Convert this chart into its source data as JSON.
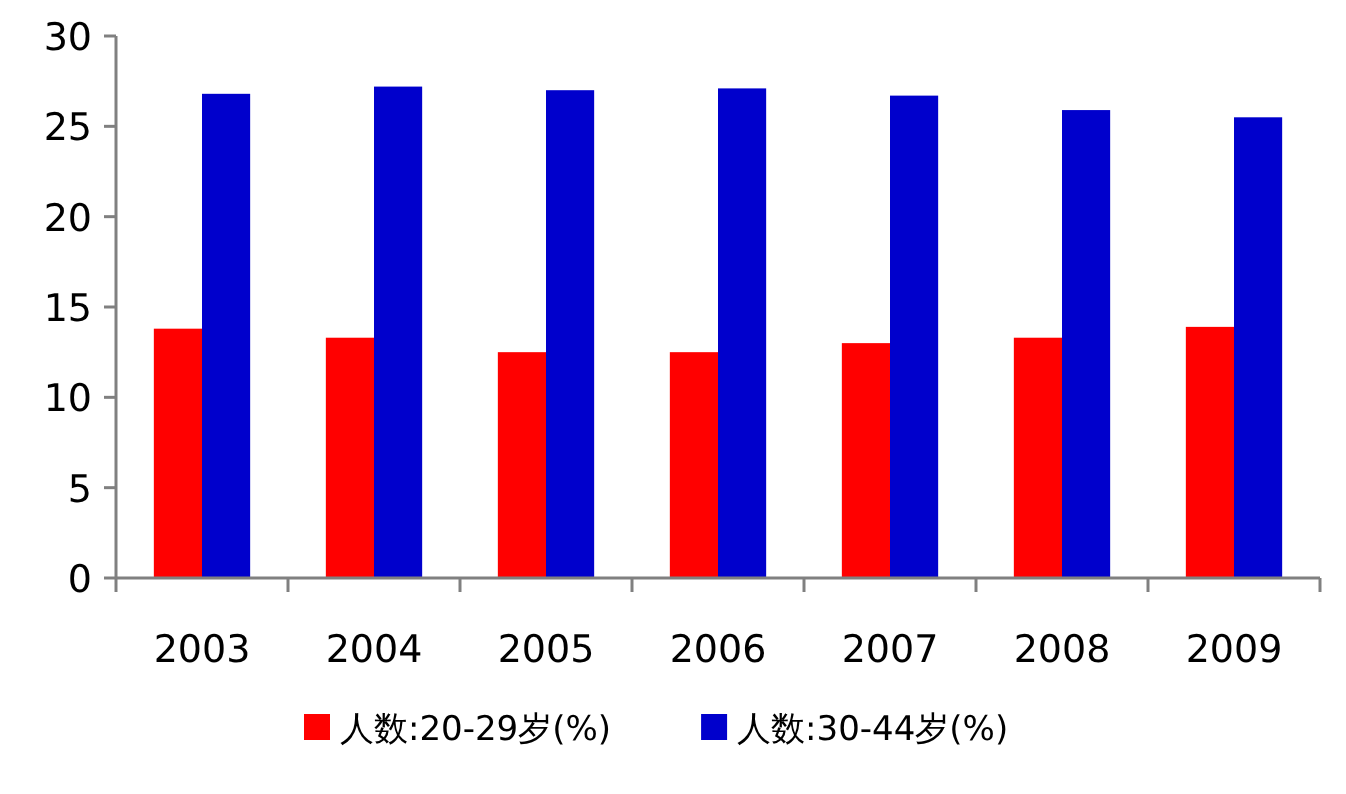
{
  "chart_data": {
    "type": "bar",
    "categories": [
      "2003",
      "2004",
      "2005",
      "2006",
      "2007",
      "2008",
      "2009"
    ],
    "series": [
      {
        "name": "人数:20-29岁(%)",
        "color": "#ff0000",
        "values": [
          13.8,
          13.3,
          12.5,
          12.5,
          13.0,
          13.3,
          13.9
        ]
      },
      {
        "name": "人数:30-44岁(%)",
        "color": "#0000cc",
        "values": [
          26.8,
          27.2,
          27.0,
          27.1,
          26.7,
          25.9,
          25.5
        ]
      }
    ],
    "ylim": [
      0,
      30
    ],
    "yticks": [
      0,
      5,
      10,
      15,
      20,
      25,
      30
    ],
    "grid": false,
    "legend": "bottom"
  }
}
